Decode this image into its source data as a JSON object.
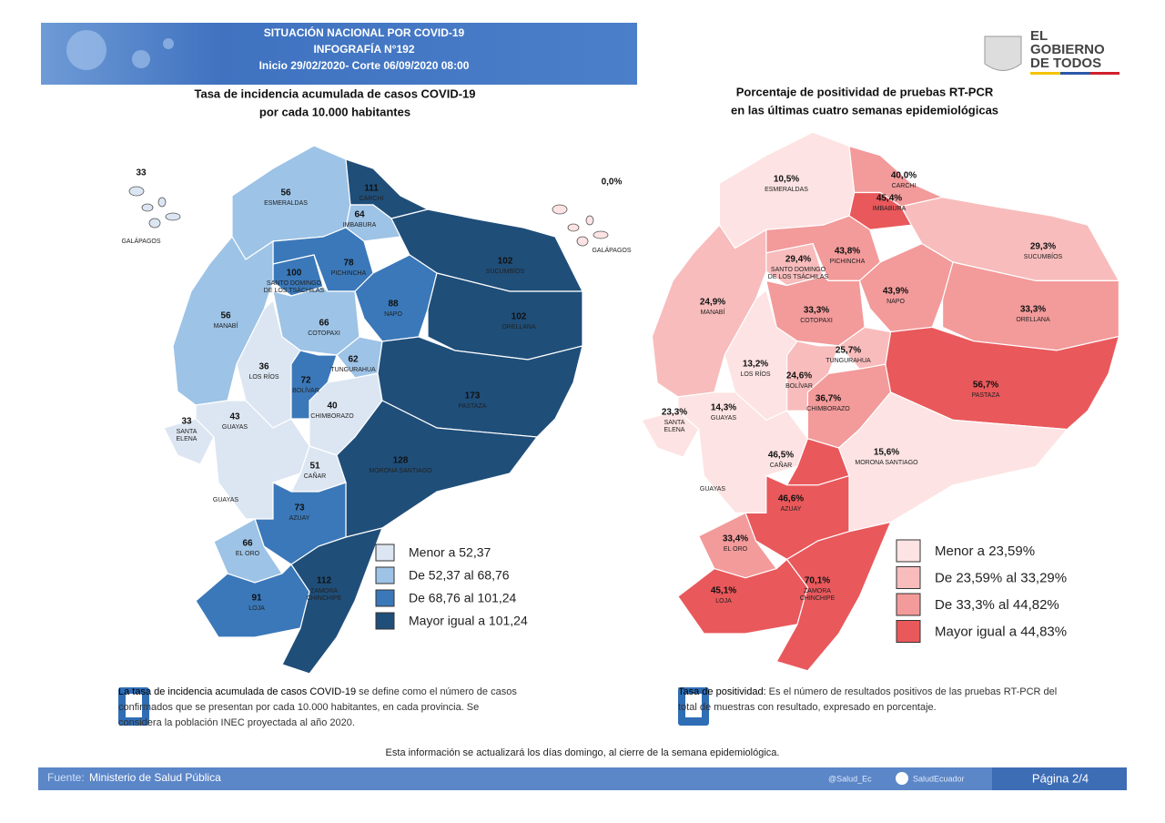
{
  "header": {
    "title": [
      "SITUACIÓN NACIONAL POR  COVID-19",
      "INFOGRAFÍA N°192",
      "Inicio 29/02/2020- Corte 06/09/2020 08:00"
    ]
  },
  "logo": [
    "EL",
    "GOBIERNO",
    "DE TODOS"
  ],
  "maps": [
    {
      "title": [
        "Tasa de incidencia acumulada de casos COVID-19",
        "por cada 10.000 habitantes"
      ],
      "provinces": [
        {
          "name": [
            "GALÁPAGOS"
          ],
          "value": 33,
          "color": "#dce6f2"
        },
        {
          "name": [
            "ESMERALDAS"
          ],
          "value": 56,
          "color": "#9dc3e6"
        },
        {
          "name": [
            "CARCHI"
          ],
          "value": 111,
          "color": "#1f4e79"
        },
        {
          "name": [
            "IMBABURA"
          ],
          "value": 64,
          "color": "#9dc3e6"
        },
        {
          "name": [
            "SUCUMBÍOS"
          ],
          "value": 102,
          "color": "#1f4e79"
        },
        {
          "name": [
            "PICHINCHA"
          ],
          "value": 78,
          "color": "#3a78b9"
        },
        {
          "name": [
            "SANTO DOMINGO",
            "DE LOS TSÁCHILAS"
          ],
          "value": 100,
          "color": "#3a78b9"
        },
        {
          "name": [
            "NAPO"
          ],
          "value": 88,
          "color": "#3a78b9"
        },
        {
          "name": [
            "ORELLANA"
          ],
          "value": 102,
          "color": "#1f4e79"
        },
        {
          "name": [
            "MANABÍ"
          ],
          "value": 56,
          "color": "#9dc3e6"
        },
        {
          "name": [
            "COTOPAXI"
          ],
          "value": 66,
          "color": "#9dc3e6"
        },
        {
          "name": [
            "TUNGURAHUA"
          ],
          "value": 62,
          "color": "#9dc3e6"
        },
        {
          "name": [
            "LOS RÍOS"
          ],
          "value": 36,
          "color": "#dce6f2"
        },
        {
          "name": [
            "BOLÍVAR"
          ],
          "value": 72,
          "color": "#3a78b9"
        },
        {
          "name": [
            "CHIMBORAZO"
          ],
          "value": 40,
          "color": "#dce6f2"
        },
        {
          "name": [
            "PASTAZA"
          ],
          "value": 173,
          "color": "#1f4e79"
        },
        {
          "name": [
            "SANTA",
            "ELENA"
          ],
          "value": 33,
          "color": "#dce6f2"
        },
        {
          "name": [
            "GUAYAS"
          ],
          "value": 43,
          "color": "#dce6f2"
        },
        {
          "name": [
            "CAÑAR"
          ],
          "value": 51,
          "color": "#dce6f2"
        },
        {
          "name": [
            "MORONA SANTIAGO"
          ],
          "value": 128,
          "color": "#1f4e79"
        },
        {
          "name": [
            "AZUAY"
          ],
          "value": 73,
          "color": "#3a78b9"
        },
        {
          "name": [
            "EL ORO"
          ],
          "value": 66,
          "color": "#9dc3e6"
        },
        {
          "name": [
            "LOJA"
          ],
          "value": 91,
          "color": "#3a78b9"
        },
        {
          "name": [
            "ZAMORA",
            "CHINCHIPE"
          ],
          "value": 112,
          "color": "#1f4e79"
        }
      ],
      "other_labels": [
        "GUAYAS"
      ],
      "legend": [
        {
          "label": "Menor a 52,37",
          "color": "#dce6f2"
        },
        {
          "label": "De 52,37 al 68,76",
          "color": "#9dc3e6"
        },
        {
          "label": "De 68,76 al 101,24",
          "color": "#3a78b9"
        },
        {
          "label": "Mayor igual a 101,24",
          "color": "#1f4e79"
        }
      ],
      "note": {
        "lead": "La tasa de incidencia acumulada de casos COVID-19",
        "text": " se define como el número de casos confirmados que se presentan por cada 10.000 habitantes, en cada provincia. Se considera la población INEC proyectada al año 2020."
      }
    },
    {
      "title": [
        "Porcentaje de positividad de pruebas RT-PCR",
        "en las últimas cuatro semanas epidemiológicas"
      ],
      "provinces": [
        {
          "name": [
            "GALÁPAGOS"
          ],
          "value": 0.0,
          "value_label": "0,0%",
          "color": "#fde3e3"
        },
        {
          "name": [
            "ESMERALDAS"
          ],
          "value": 10.5,
          "value_label": "10,5%",
          "color": "#fde3e3"
        },
        {
          "name": [
            "CARCHI"
          ],
          "value": 40.0,
          "value_label": "40,0%",
          "color": "#f39a9a"
        },
        {
          "name": [
            "IMBABURA"
          ],
          "value": 45.4,
          "value_label": "45,4%",
          "color": "#e9585b"
        },
        {
          "name": [
            "SUCUMBÍOS"
          ],
          "value": 29.3,
          "value_label": "29,3%",
          "color": "#f8bcbc"
        },
        {
          "name": [
            "PICHINCHA"
          ],
          "value": 43.8,
          "value_label": "43,8%",
          "color": "#f39a9a"
        },
        {
          "name": [
            "SANTO DOMINGO",
            "DE LOS TSÁCHILAS"
          ],
          "value": 29.4,
          "value_label": "29,4%",
          "color": "#f8bcbc"
        },
        {
          "name": [
            "NAPO"
          ],
          "value": 43.9,
          "value_label": "43,9%",
          "color": "#f39a9a"
        },
        {
          "name": [
            "ORELLANA"
          ],
          "value": 33.3,
          "value_label": "33,3%",
          "color": "#f39a9a"
        },
        {
          "name": [
            "MANABÍ"
          ],
          "value": 24.9,
          "value_label": "24,9%",
          "color": "#f8bcbc"
        },
        {
          "name": [
            "COTOPAXI"
          ],
          "value": 33.3,
          "value_label": "33,3%",
          "color": "#f39a9a"
        },
        {
          "name": [
            "TUNGURAHUA"
          ],
          "value": 25.7,
          "value_label": "25,7%",
          "color": "#f8bcbc"
        },
        {
          "name": [
            "LOS RÍOS"
          ],
          "value": 13.2,
          "value_label": "13,2%",
          "color": "#fde3e3"
        },
        {
          "name": [
            "BOLÍVAR"
          ],
          "value": 24.6,
          "value_label": "24,6%",
          "color": "#f8bcbc"
        },
        {
          "name": [
            "CHIMBORAZO"
          ],
          "value": 36.7,
          "value_label": "36,7%",
          "color": "#f39a9a"
        },
        {
          "name": [
            "PASTAZA"
          ],
          "value": 56.7,
          "value_label": "56,7%",
          "color": "#e9585b"
        },
        {
          "name": [
            "SANTA",
            "ELENA"
          ],
          "value": 23.3,
          "value_label": "23,3%",
          "color": "#fde3e3"
        },
        {
          "name": [
            "GUAYAS"
          ],
          "value": 14.3,
          "value_label": "14,3%",
          "color": "#fde3e3"
        },
        {
          "name": [
            "CAÑAR"
          ],
          "value": 46.5,
          "value_label": "46,5%",
          "color": "#e9585b"
        },
        {
          "name": [
            "MORONA SANTIAGO"
          ],
          "value": 15.6,
          "value_label": "15,6%",
          "color": "#fde3e3"
        },
        {
          "name": [
            "AZUAY"
          ],
          "value": 46.6,
          "value_label": "46,6%",
          "color": "#e9585b"
        },
        {
          "name": [
            "EL ORO"
          ],
          "value": 33.4,
          "value_label": "33,4%",
          "color": "#f39a9a"
        },
        {
          "name": [
            "LOJA"
          ],
          "value": 45.1,
          "value_label": "45,1%",
          "color": "#e9585b"
        },
        {
          "name": [
            "ZAMORA",
            "CHINCHIPE"
          ],
          "value": 70.1,
          "value_label": "70,1%",
          "color": "#e9585b"
        }
      ],
      "other_labels": [
        "GUAYAS"
      ],
      "legend": [
        {
          "label": "Menor a 23,59%",
          "color": "#fde3e3"
        },
        {
          "label": "De 23,59% al 33,29%",
          "color": "#f8bcbc"
        },
        {
          "label": "De 33,3% al 44,82%",
          "color": "#f39a9a"
        },
        {
          "label": "Mayor igual a 44,83%",
          "color": "#e9585b"
        }
      ],
      "note": {
        "lead": "Tasa de positividad:",
        "text": "  Es el número de resultados positivos de las pruebas RT-PCR del total de muestras con resultado, expresado en porcentaje."
      }
    }
  ],
  "update_note": "Esta información se actualizará los días domingo, al cierre de la semana epidemiológica.",
  "footer": {
    "source_label": "Fuente:",
    "source": "Ministerio de Salud Pública",
    "twitter": "@Salud_Ec",
    "facebook": "SaludEcuador",
    "page": "Página 2/4"
  }
}
